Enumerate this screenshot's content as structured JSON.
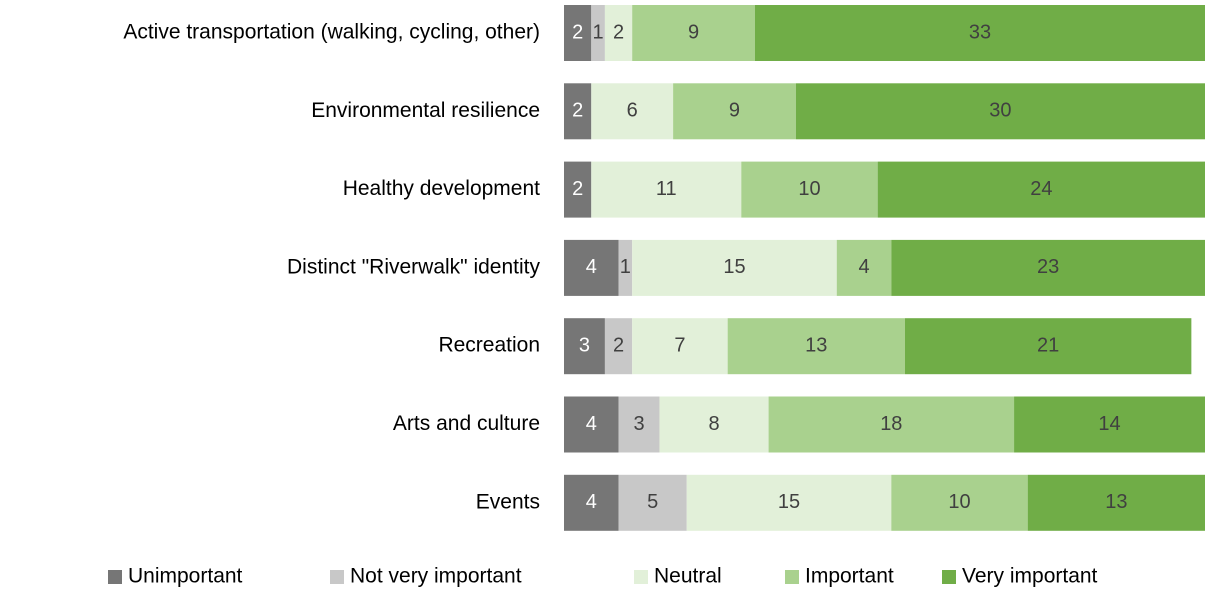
{
  "chart_data": {
    "type": "stacked_barh",
    "categories": [
      "Active transportation (walking, cycling, other)",
      "Environmental resilience",
      "Healthy development",
      "Distinct \"Riverwalk\" identity",
      "Recreation",
      "Arts and culture",
      "Events"
    ],
    "series": [
      {
        "name": "Unimportant",
        "color": "#767676",
        "values": [
          2,
          2,
          2,
          4,
          3,
          4,
          4
        ]
      },
      {
        "name": "Not very important",
        "color": "#c8c8c8",
        "values": [
          1,
          null,
          null,
          1,
          2,
          3,
          5
        ]
      },
      {
        "name": "Neutral",
        "color": "#e2f0d9",
        "values": [
          2,
          6,
          11,
          15,
          7,
          8,
          15
        ]
      },
      {
        "name": "Important",
        "color": "#a9d18e",
        "values": [
          9,
          9,
          10,
          4,
          13,
          18,
          10
        ]
      },
      {
        "name": "Very important",
        "color": "#70ad47",
        "values": [
          33,
          30,
          24,
          23,
          21,
          14,
          13
        ]
      }
    ],
    "legend": "bottom"
  }
}
